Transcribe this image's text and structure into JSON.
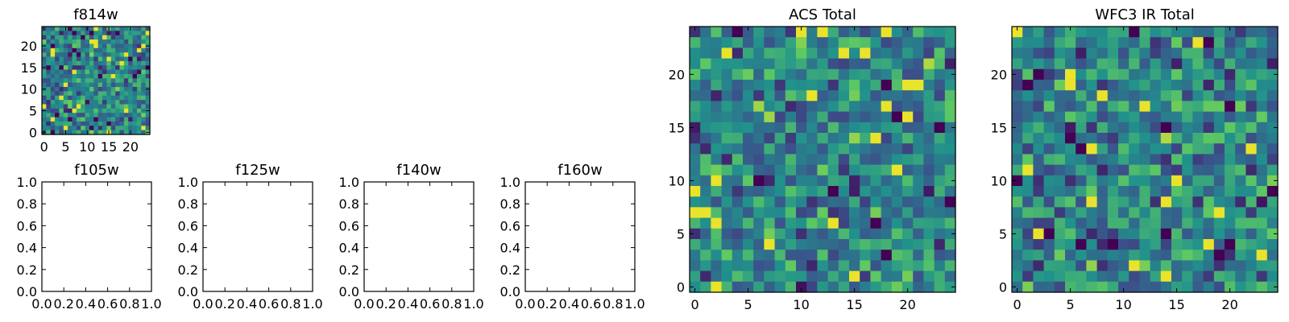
{
  "figure": {
    "background": "#ffffff"
  },
  "colormap": [
    "#440154",
    "#3b528b",
    "#21918c",
    "#5ec962",
    "#fde725"
  ],
  "chart_data": [
    {
      "id": "f814w",
      "type": "heatmap",
      "title": "f814w",
      "grid_n": 25,
      "seed": 814,
      "xlim": [
        -0.5,
        24.5
      ],
      "ylim": [
        -0.5,
        24.5
      ],
      "xticks": [
        0,
        5,
        10,
        15,
        20
      ],
      "yticks": [
        0,
        5,
        10,
        15,
        20
      ],
      "xticklabels": [
        "0",
        "5",
        "10",
        "15",
        "20"
      ],
      "yticklabels": [
        "0",
        "5",
        "10",
        "15",
        "20"
      ]
    },
    {
      "id": "f105w",
      "type": "empty",
      "title": "f105w",
      "xlim": [
        0,
        1
      ],
      "ylim": [
        0,
        1
      ],
      "xticks": [
        0,
        0.2,
        0.4,
        0.6,
        0.8,
        1.0
      ],
      "yticks": [
        0,
        0.2,
        0.4,
        0.6,
        0.8,
        1.0
      ],
      "xticklabels": [
        "0.0",
        "0.2",
        "0.4",
        "0.6",
        "0.8",
        "1.0"
      ],
      "yticklabels": [
        "0.0",
        "0.2",
        "0.4",
        "0.6",
        "0.8",
        "1.0"
      ]
    },
    {
      "id": "f125w",
      "type": "empty",
      "title": "f125w",
      "xlim": [
        0,
        1
      ],
      "ylim": [
        0,
        1
      ],
      "xticks": [
        0,
        0.2,
        0.4,
        0.6,
        0.8,
        1.0
      ],
      "yticks": [
        0,
        0.2,
        0.4,
        0.6,
        0.8,
        1.0
      ],
      "xticklabels": [
        "0.0",
        "0.2",
        "0.4",
        "0.6",
        "0.8",
        "1.0"
      ],
      "yticklabels": [
        "0.0",
        "0.2",
        "0.4",
        "0.6",
        "0.8",
        "1.0"
      ]
    },
    {
      "id": "f140w",
      "type": "empty",
      "title": "f140w",
      "xlim": [
        0,
        1
      ],
      "ylim": [
        0,
        1
      ],
      "xticks": [
        0,
        0.2,
        0.4,
        0.6,
        0.8,
        1.0
      ],
      "yticks": [
        0,
        0.2,
        0.4,
        0.6,
        0.8,
        1.0
      ],
      "xticklabels": [
        "0.0",
        "0.2",
        "0.4",
        "0.6",
        "0.8",
        "1.0"
      ],
      "yticklabels": [
        "0.0",
        "0.2",
        "0.4",
        "0.6",
        "0.8",
        "1.0"
      ]
    },
    {
      "id": "f160w",
      "type": "empty",
      "title": "f160w",
      "xlim": [
        0,
        1
      ],
      "ylim": [
        0,
        1
      ],
      "xticks": [
        0,
        0.2,
        0.4,
        0.6,
        0.8,
        1.0
      ],
      "yticks": [
        0,
        0.2,
        0.4,
        0.6,
        0.8,
        1.0
      ],
      "xticklabels": [
        "0.0",
        "0.2",
        "0.4",
        "0.6",
        "0.8",
        "1.0"
      ],
      "yticklabels": [
        "0.0",
        "0.2",
        "0.4",
        "0.6",
        "0.8",
        "1.0"
      ]
    },
    {
      "id": "acs-total",
      "type": "heatmap",
      "title": "ACS Total",
      "grid_n": 25,
      "seed": 1984,
      "xlim": [
        -0.5,
        24.5
      ],
      "ylim": [
        -0.5,
        24.5
      ],
      "xticks": [
        0,
        5,
        10,
        15,
        20
      ],
      "yticks": [
        0,
        5,
        10,
        15,
        20
      ],
      "xticklabels": [
        "0",
        "5",
        "10",
        "15",
        "20"
      ],
      "yticklabels": [
        "0",
        "5",
        "10",
        "15",
        "20"
      ]
    },
    {
      "id": "wfc3-ir-total",
      "type": "heatmap",
      "title": "WFC3 IR Total",
      "grid_n": 25,
      "seed": 2009,
      "xlim": [
        -0.5,
        24.5
      ],
      "ylim": [
        -0.5,
        24.5
      ],
      "xticks": [
        0,
        5,
        10,
        15,
        20
      ],
      "yticks": [
        0,
        5,
        10,
        15,
        20
      ],
      "xticklabels": [
        "0",
        "5",
        "10",
        "15",
        "20"
      ],
      "yticklabels": [
        "0",
        "5",
        "10",
        "15",
        "20"
      ]
    }
  ]
}
